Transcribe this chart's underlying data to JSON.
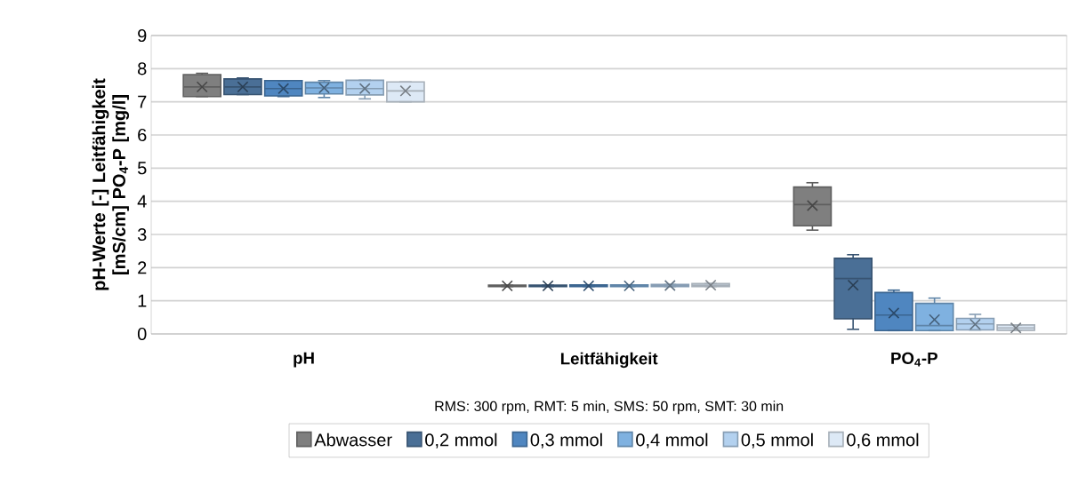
{
  "chart_data": {
    "type": "box",
    "ylabel": "pH-Werte [-] Leitfähigkeit [mS/cm] PO$_{4}$-P [mg/l]",
    "categories": [
      "pH",
      "Leitfähigkeit",
      "PO$_{4}$-P"
    ],
    "ylim": [
      0,
      9
    ],
    "yticks": [
      0,
      1,
      2,
      3,
      4,
      5,
      6,
      7,
      8,
      9
    ],
    "grid": "y",
    "legend": "bottom",
    "annotations": [
      "RMS: 300 rpm, RMT: 5 min, SMS: 50 rpm, SMT: 30 min"
    ],
    "series": [
      {
        "name": "Abwasser",
        "color": "#7f7f7f",
        "boxes": [
          {
            "low": 7.16,
            "q1": 7.16,
            "median": 7.45,
            "q3": 7.82,
            "high": 7.86,
            "mean": 7.45
          },
          {
            "low": 1.43,
            "q1": 1.43,
            "median": 1.45,
            "q3": 1.47,
            "high": 1.47,
            "mean": 1.45
          },
          {
            "low": 3.13,
            "q1": 3.26,
            "median": 3.9,
            "q3": 4.43,
            "high": 4.56,
            "mean": 3.87
          }
        ]
      },
      {
        "name": "0,2 mmol",
        "color": "#4a6f96",
        "boxes": [
          {
            "low": 7.22,
            "q1": 7.22,
            "median": 7.45,
            "q3": 7.69,
            "high": 7.72,
            "mean": 7.45
          },
          {
            "low": 1.43,
            "q1": 1.43,
            "median": 1.45,
            "q3": 1.47,
            "high": 1.47,
            "mean": 1.45
          },
          {
            "low": 0.14,
            "q1": 0.46,
            "median": 1.67,
            "q3": 2.28,
            "high": 2.39,
            "mean": 1.47
          }
        ]
      },
      {
        "name": "0,3 mmol",
        "color": "#4f86c0",
        "boxes": [
          {
            "low": 7.16,
            "q1": 7.18,
            "median": 7.4,
            "q3": 7.64,
            "high": 7.64,
            "mean": 7.4
          },
          {
            "low": 1.43,
            "q1": 1.43,
            "median": 1.45,
            "q3": 1.48,
            "high": 1.48,
            "mean": 1.45
          },
          {
            "low": 0.1,
            "q1": 0.1,
            "median": 0.57,
            "q3": 1.25,
            "high": 1.32,
            "mean": 0.63
          }
        ]
      },
      {
        "name": "0,4 mmol",
        "color": "#7fb1e0",
        "boxes": [
          {
            "low": 7.13,
            "q1": 7.24,
            "median": 7.42,
            "q3": 7.59,
            "high": 7.64,
            "mean": 7.42
          },
          {
            "low": 1.43,
            "q1": 1.43,
            "median": 1.45,
            "q3": 1.48,
            "high": 1.48,
            "mean": 1.45
          },
          {
            "low": 0.1,
            "q1": 0.1,
            "median": 0.25,
            "q3": 0.92,
            "high": 1.08,
            "mean": 0.43
          }
        ]
      },
      {
        "name": "0,5 mmol",
        "color": "#b3d1ef",
        "boxes": [
          {
            "low": 7.09,
            "q1": 7.21,
            "median": 7.4,
            "q3": 7.65,
            "high": 7.65,
            "mean": 7.4
          },
          {
            "low": 1.43,
            "q1": 1.43,
            "median": 1.46,
            "q3": 1.49,
            "high": 1.49,
            "mean": 1.46
          },
          {
            "low": 0.12,
            "q1": 0.12,
            "median": 0.3,
            "q3": 0.47,
            "high": 0.59,
            "mean": 0.29
          }
        ]
      },
      {
        "name": "0,6 mmol",
        "color": "#dde9f6",
        "boxes": [
          {
            "low": 7.0,
            "q1": 7.0,
            "median": 7.33,
            "q3": 7.6,
            "high": 7.6,
            "mean": 7.33
          },
          {
            "low": 1.43,
            "q1": 1.43,
            "median": 1.47,
            "q3": 1.52,
            "high": 1.52,
            "mean": 1.47
          },
          {
            "low": 0.11,
            "q1": 0.11,
            "median": 0.18,
            "q3": 0.27,
            "high": 0.27,
            "mean": 0.18
          }
        ]
      }
    ]
  }
}
